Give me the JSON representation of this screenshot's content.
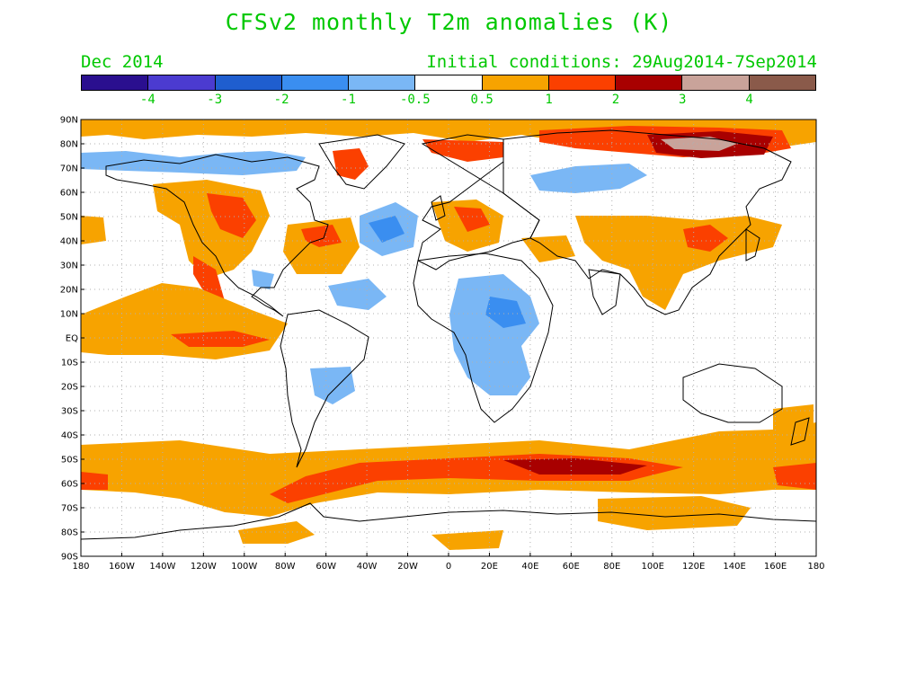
{
  "title": "CFSv2 monthly T2m anomalies (K)",
  "subtitle_left": "Dec 2014",
  "subtitle_right": "Initial conditions: 29Aug2014-7Sep2014",
  "colorbar": {
    "colors": [
      "#2a0f8f",
      "#4b3bd0",
      "#1f5ecf",
      "#3a8ef0",
      "#7ab7f5",
      "#ffffff",
      "#f7a300",
      "#fb4000",
      "#a80000",
      "#c9a39a",
      "#8a5a4a"
    ],
    "labels": [
      "-4",
      "-3",
      "-2",
      "-1",
      "-0.5",
      "0.5",
      "1",
      "2",
      "3",
      "4"
    ]
  },
  "axes": {
    "lat_labels": [
      "90N",
      "80N",
      "70N",
      "60N",
      "50N",
      "40N",
      "30N",
      "20N",
      "10N",
      "EQ",
      "10S",
      "20S",
      "30S",
      "40S",
      "50S",
      "60S",
      "70S",
      "80S",
      "90S"
    ],
    "lon_labels": [
      "180",
      "160W",
      "140W",
      "120W",
      "100W",
      "80W",
      "60W",
      "40W",
      "20W",
      "0",
      "20E",
      "40E",
      "60E",
      "80E",
      "100E",
      "120E",
      "140E",
      "160E",
      "180"
    ]
  },
  "colors": {
    "text": "#00c800",
    "land_outline": "#000000",
    "grid": "#b0b0b0"
  }
}
